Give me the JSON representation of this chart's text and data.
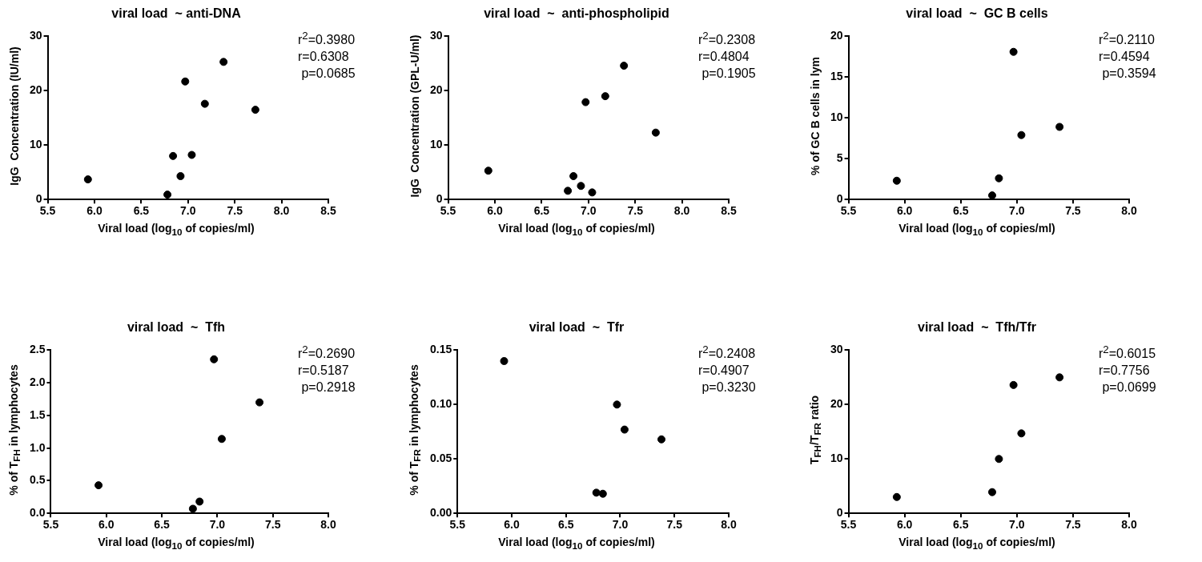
{
  "chart_data": [
    {
      "type": "scatter",
      "title": "viral load  ~ anti-DNA",
      "xlabel": "Viral load (log$_{10}$ of copies/ml)",
      "ylabel": "IgG  Concentration (IU/ml)",
      "annotations": [
        "r$^{2}$=0.3980",
        "r=0.6308",
        " p=0.0685"
      ],
      "marker": "circle",
      "color": "#000000",
      "x": [
        5.93,
        6.78,
        6.84,
        6.92,
        6.97,
        7.04,
        7.18,
        7.38,
        7.72
      ],
      "values": [
        3.7,
        0.9,
        8.0,
        4.3,
        21.7,
        8.2,
        17.6,
        25.3,
        16.5
      ],
      "xlim": [
        5.5,
        8.5
      ],
      "xticks": [
        5.5,
        {
          "value": 6,
          "label": "6.0"
        },
        6.5,
        {
          "value": 7,
          "label": "7.0"
        },
        7.5,
        {
          "value": 8,
          "label": "8.0"
        },
        8.5
      ],
      "ylim": [
        0,
        30
      ],
      "yticks": [
        0,
        10,
        20,
        30
      ]
    },
    {
      "type": "scatter",
      "title": "viral load  ~  anti-phospholipid",
      "xlabel": "Viral load (log$_{10}$ of copies/ml)",
      "ylabel": "IgG  Concentration (GPL-U/ml)",
      "annotations": [
        "r$^{2}$=0.2308",
        "r=0.4804",
        " p=0.1905"
      ],
      "marker": "circle",
      "color": "#000000",
      "x": [
        5.93,
        6.78,
        6.84,
        6.92,
        6.97,
        7.04,
        7.18,
        7.38,
        7.72
      ],
      "values": [
        5.3,
        1.6,
        4.3,
        2.5,
        17.9,
        1.3,
        19.0,
        24.6,
        12.3
      ],
      "xlim": [
        5.5,
        8.5
      ],
      "xticks": [
        5.5,
        {
          "value": 6,
          "label": "6.0"
        },
        6.5,
        {
          "value": 7,
          "label": "7.0"
        },
        7.5,
        {
          "value": 8,
          "label": "8.0"
        },
        8.5
      ],
      "ylim": [
        0,
        30
      ],
      "yticks": [
        0,
        10,
        20,
        30
      ]
    },
    {
      "type": "scatter",
      "title": "viral load  ~  GC B cells",
      "xlabel": "Viral load (log$_{10}$ of copies/ml)",
      "ylabel": "% of GC B cells in lym",
      "annotations": [
        "r$^{2}$=0.2110",
        "r=0.4594",
        " p=0.3594"
      ],
      "marker": "circle",
      "color": "#000000",
      "x": [
        5.93,
        6.78,
        6.84,
        6.97,
        7.04,
        7.38
      ],
      "values": [
        2.3,
        0.5,
        2.6,
        18.1,
        7.9,
        8.9
      ],
      "xlim": [
        5.5,
        8.0
      ],
      "xticks": [
        5.5,
        {
          "value": 6,
          "label": "6.0"
        },
        6.5,
        {
          "value": 7,
          "label": "7.0"
        },
        7.5,
        {
          "value": 8,
          "label": "8.0"
        }
      ],
      "ylim": [
        0,
        20
      ],
      "yticks": [
        0,
        5,
        10,
        15,
        20
      ]
    },
    {
      "type": "scatter",
      "title": "viral load  ~  Tfh",
      "xlabel": "Viral load (log$_{10}$ of copies/ml)",
      "ylabel": "% of T$_{FH}$ in lymphocytes",
      "annotations": [
        "r$^{2}$=0.2690",
        "r=0.5187",
        " p=0.2918"
      ],
      "marker": "circle",
      "color": "#000000",
      "x": [
        5.93,
        6.78,
        6.84,
        6.97,
        7.04,
        7.38
      ],
      "values": [
        0.43,
        0.07,
        0.18,
        2.36,
        1.14,
        1.7
      ],
      "xlim": [
        5.5,
        8.0
      ],
      "xticks": [
        5.5,
        {
          "value": 6,
          "label": "6.0"
        },
        6.5,
        {
          "value": 7,
          "label": "7.0"
        },
        7.5,
        {
          "value": 8,
          "label": "8.0"
        }
      ],
      "ylim": [
        0,
        2.5
      ],
      "yticks": [
        {
          "value": 0,
          "label": "0.0"
        },
        0.5,
        {
          "value": 1,
          "label": "1.0"
        },
        1.5,
        {
          "value": 2,
          "label": "2.0"
        },
        2.5
      ]
    },
    {
      "type": "scatter",
      "title": "viral load  ~  Tfr",
      "xlabel": "Viral load (log$_{10}$ of copies/ml)",
      "ylabel": "% of T$_{FR}$ in lymphocytes",
      "annotations": [
        "r$^{2}$=0.2408",
        "r=0.4907",
        " p=0.3230"
      ],
      "marker": "circle",
      "color": "#000000",
      "x": [
        5.93,
        6.78,
        6.84,
        6.97,
        7.04,
        7.38
      ],
      "values": [
        0.14,
        0.019,
        0.018,
        0.1,
        0.077,
        0.068
      ],
      "xlim": [
        5.5,
        8.0
      ],
      "xticks": [
        5.5,
        {
          "value": 6,
          "label": "6.0"
        },
        6.5,
        {
          "value": 7,
          "label": "7.0"
        },
        7.5,
        {
          "value": 8,
          "label": "8.0"
        }
      ],
      "ylim": [
        0,
        0.15
      ],
      "yticks": [
        {
          "value": 0,
          "label": "0.00"
        },
        0.05,
        {
          "value": 0.1,
          "label": "0.10"
        },
        0.15
      ]
    },
    {
      "type": "scatter",
      "title": "viral load  ~  Tfh/Tfr",
      "xlabel": "Viral load (log$_{10}$ of copies/ml)",
      "ylabel": "T$_{FH}$/T$_{FR}$ ratio",
      "annotations": [
        "r$^{2}$=0.6015",
        "r=0.7756",
        " p=0.0699"
      ],
      "marker": "circle",
      "color": "#000000",
      "x": [
        5.93,
        6.78,
        6.84,
        6.97,
        7.04,
        7.38
      ],
      "values": [
        3.0,
        3.9,
        10.0,
        23.6,
        14.7,
        25.0
      ],
      "xlim": [
        5.5,
        8.0
      ],
      "xticks": [
        5.5,
        {
          "value": 6,
          "label": "6.0"
        },
        6.5,
        {
          "value": 7,
          "label": "7.0"
        },
        7.5,
        {
          "value": 8,
          "label": "8.0"
        }
      ],
      "ylim": [
        0,
        30
      ],
      "yticks": [
        0,
        10,
        20,
        30
      ]
    }
  ]
}
